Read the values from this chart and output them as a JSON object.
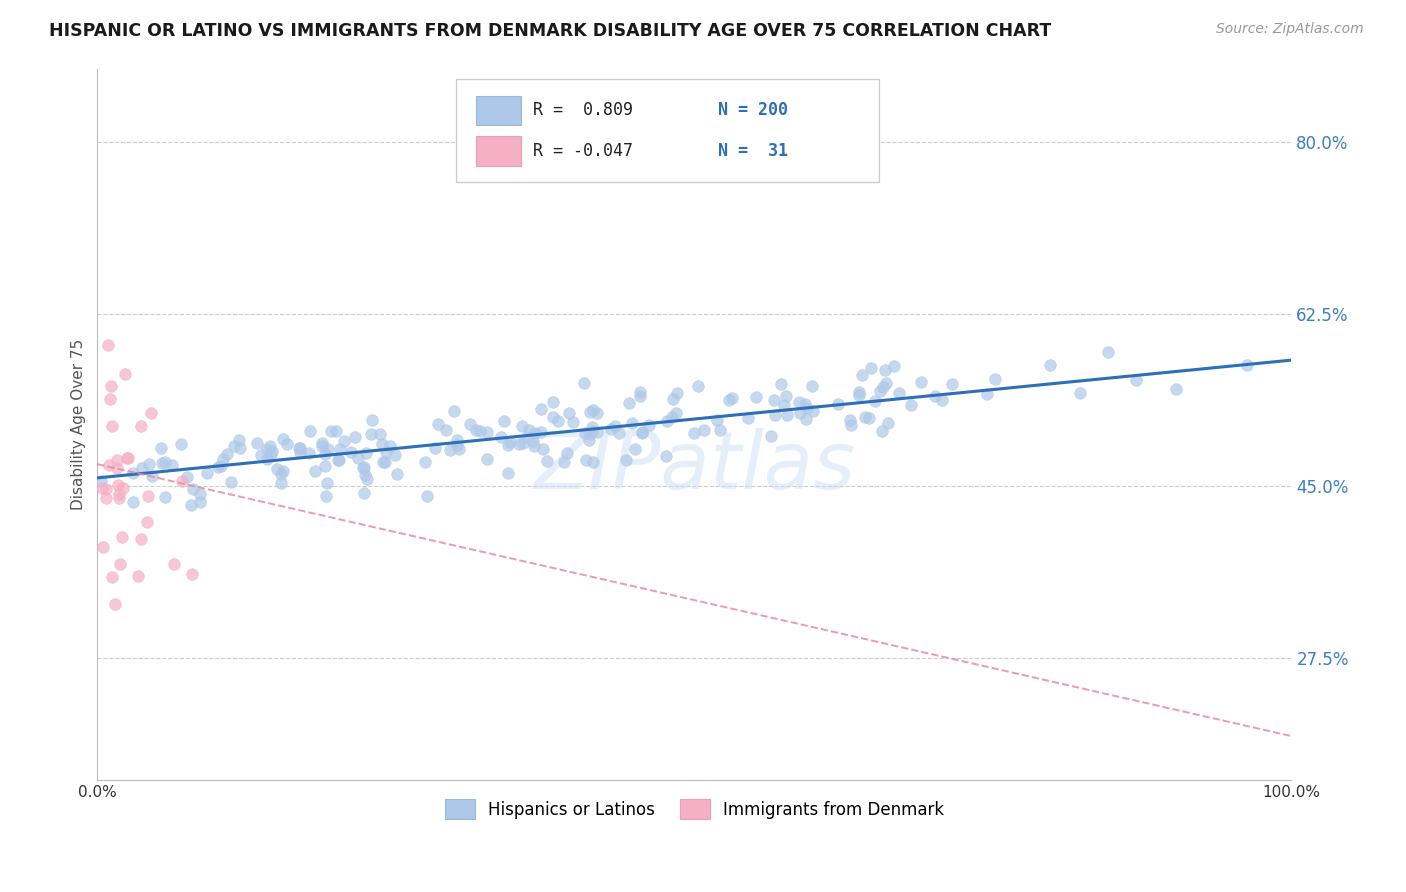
{
  "title": "HISPANIC OR LATINO VS IMMIGRANTS FROM DENMARK DISABILITY AGE OVER 75 CORRELATION CHART",
  "source_text": "Source: ZipAtlas.com",
  "ylabel": "Disability Age Over 75",
  "xlim": [
    0.0,
    1.0
  ],
  "ylim": [
    0.15,
    0.875
  ],
  "xticks": [
    0.0,
    0.25,
    0.5,
    0.75,
    1.0
  ],
  "xticklabels": [
    "0.0%",
    "",
    "",
    "",
    "100.0%"
  ],
  "ytick_positions": [
    0.275,
    0.45,
    0.625,
    0.8
  ],
  "ytick_labels": [
    "27.5%",
    "45.0%",
    "62.5%",
    "80.0%"
  ],
  "blue_R": 0.809,
  "blue_N": 200,
  "pink_R": -0.047,
  "pink_N": 31,
  "blue_color": "#adc8e8",
  "pink_color": "#f5b0c5",
  "blue_line_color": "#2e6fba",
  "pink_line_color": "#e88aa0",
  "legend_label_blue": "Hispanics or Latinos",
  "legend_label_pink": "Immigrants from Denmark",
  "title_color": "#1a1a1a",
  "axis_label_color": "#555555",
  "grid_color": "#cccccc",
  "tick_color": "#3b7fc4",
  "blue_scatter_seed": 7,
  "pink_scatter_seed": 13,
  "blue_trend_y0": 0.458,
  "blue_trend_y1": 0.578,
  "pink_trend_y0": 0.472,
  "pink_trend_y1": 0.195
}
